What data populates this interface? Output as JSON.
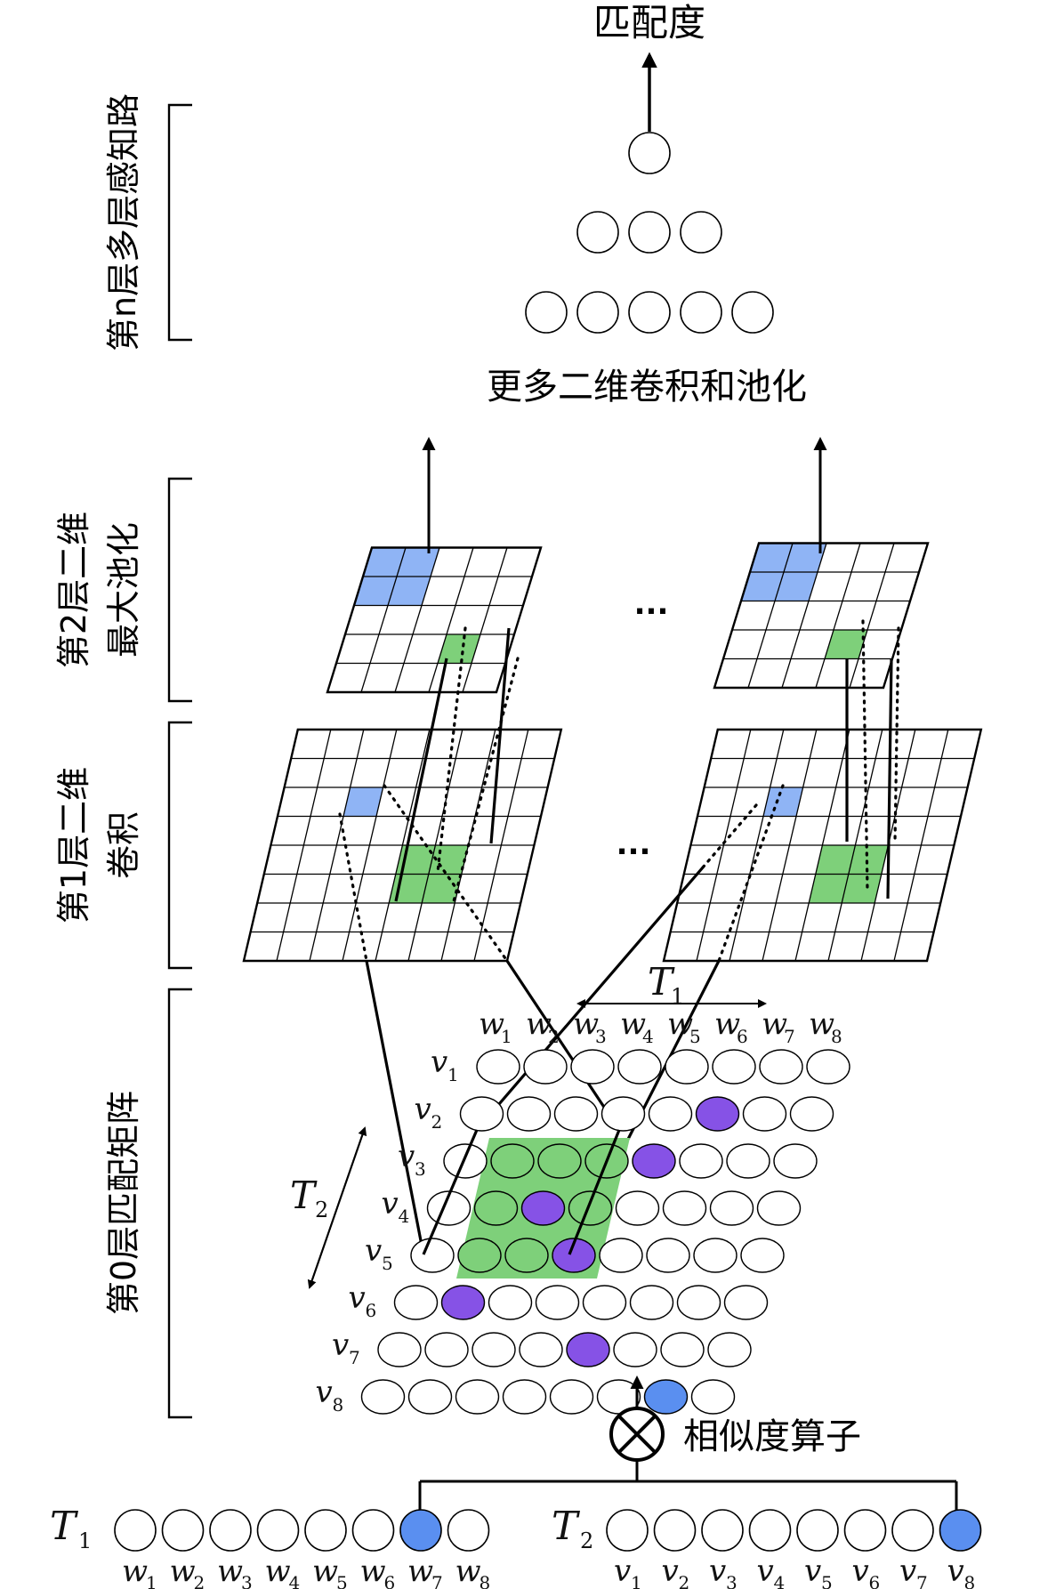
{
  "title": "匹配度",
  "more_layers_label": "更多二维卷积和池化",
  "similarity_label": "相似度算子",
  "ellipsis": "...",
  "layers": {
    "mlp": "第n层多层感知路",
    "pool2": "第2层二维最大池化",
    "pool2_lines": [
      "第2层二维",
      "最大池化"
    ],
    "conv1": "第1层二维卷积",
    "conv1_lines": [
      "第1层二维",
      "卷积"
    ],
    "match0": "第0层匹配矩阵"
  },
  "T1": {
    "name": "T",
    "sub": "1",
    "words": [
      "w1",
      "w2",
      "w3",
      "w4",
      "w5",
      "w6",
      "w7",
      "w8"
    ]
  },
  "T2": {
    "name": "T",
    "sub": "2",
    "words": [
      "v1",
      "v2",
      "v3",
      "v4",
      "v5",
      "v6",
      "v7",
      "v8"
    ]
  },
  "colors": {
    "blue": "#5a8ff0",
    "light_blue": "#8fb4f5",
    "green": "#7ed07a",
    "purple": "#8652e6"
  }
}
